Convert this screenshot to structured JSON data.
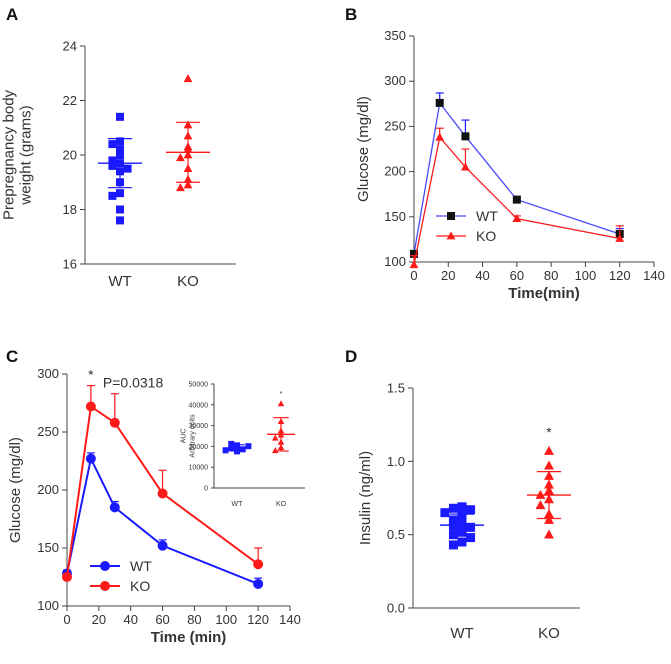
{
  "panels": {
    "A": {
      "letter": "A"
    },
    "B": {
      "letter": "B"
    },
    "C": {
      "letter": "C"
    },
    "D": {
      "letter": "D"
    }
  },
  "colors": {
    "wt": "#1a1aff",
    "ko": "#ff1a1a",
    "wt_line_b": "#4a4aff",
    "axis": "#444444"
  },
  "chart_data": [
    {
      "id": "A",
      "type": "scatter",
      "title": "",
      "xlabel": "",
      "ylabel": "Prepregnancy body weight (grams)",
      "ylabel_lines": [
        "Prepregnancy body",
        "weight (grams)"
      ],
      "categories": [
        "WT",
        "KO"
      ],
      "ylim": [
        16,
        24
      ],
      "yticks": [
        "16",
        "18",
        "20",
        "22",
        "24"
      ],
      "series": [
        {
          "name": "WT",
          "marker": "square",
          "values": [
            21.4,
            20.5,
            20.4,
            20.2,
            20.0,
            19.8,
            19.7,
            19.6,
            19.5,
            19.4,
            19.0,
            18.6,
            18.5,
            18.0,
            17.6
          ],
          "mean": 19.7,
          "sd_low": 18.8,
          "sd_high": 20.6
        },
        {
          "name": "KO",
          "marker": "triangle",
          "values": [
            22.8,
            21.1,
            20.7,
            20.3,
            20.2,
            20.0,
            19.9,
            19.5,
            19.1,
            18.9,
            18.8
          ],
          "mean": 20.1,
          "sd_low": 19.0,
          "sd_high": 21.2
        }
      ]
    },
    {
      "id": "B",
      "type": "line",
      "title": "",
      "xlabel": "Time(min)",
      "ylabel": "Glucose (mg/dl)",
      "x": [
        0,
        15,
        30,
        60,
        120
      ],
      "xlim": [
        0,
        140
      ],
      "ylim": [
        100,
        350
      ],
      "xticks": [
        "0",
        "20",
        "40",
        "60",
        "80",
        "100",
        "120",
        "140"
      ],
      "yticks": [
        "100",
        "150",
        "200",
        "250",
        "300",
        "350"
      ],
      "legend": [
        "WT",
        "KO"
      ],
      "series": [
        {
          "name": "WT",
          "marker": "square",
          "values": [
            109,
            276,
            239,
            169,
            131
          ],
          "err": [
            3,
            11,
            18,
            3,
            6
          ]
        },
        {
          "name": "KO",
          "marker": "triangle",
          "values": [
            97,
            238,
            205,
            148,
            126
          ],
          "err": [
            10,
            10,
            20,
            3,
            14
          ]
        }
      ]
    },
    {
      "id": "C",
      "type": "line",
      "title": "",
      "xlabel": "Time (min)",
      "ylabel": "Glucose (mg/dl)",
      "x": [
        0,
        15,
        30,
        60,
        120
      ],
      "xlim": [
        0,
        140
      ],
      "ylim": [
        100,
        300
      ],
      "xticks": [
        "0",
        "20",
        "40",
        "60",
        "80",
        "100",
        "120",
        "140"
      ],
      "yticks": [
        "100",
        "150",
        "200",
        "250",
        "300"
      ],
      "legend": [
        "WT",
        "KO"
      ],
      "annotation_star": "*",
      "annotation_p": "P=0.0318",
      "series": [
        {
          "name": "WT",
          "marker": "circle",
          "values": [
            128,
            227,
            185,
            152,
            119
          ],
          "err": [
            3,
            5,
            5,
            5,
            5
          ]
        },
        {
          "name": "KO",
          "marker": "circle",
          "values": [
            125,
            272,
            258,
            197,
            136
          ],
          "err": [
            3,
            18,
            25,
            20,
            14
          ]
        }
      ],
      "inset": {
        "type": "scatter",
        "ylabel_lines": [
          "AUC",
          "Arbitrary units"
        ],
        "categories": [
          "WT",
          "KO"
        ],
        "ylim": [
          0,
          50000
        ],
        "yticks": [
          "0",
          "10000",
          "20000",
          "30000",
          "40000",
          "50000"
        ],
        "annotation_star": "*",
        "series": [
          {
            "name": "WT",
            "marker": "square",
            "values": [
              20500,
              19800,
              19200,
              18600,
              18100,
              17600,
              21200,
              20100
            ],
            "mean": 19200,
            "sd_low": 17800,
            "sd_high": 20800
          },
          {
            "name": "KO",
            "marker": "triangle",
            "values": [
              40500,
              32000,
              27500,
              25500,
              22000,
              19500,
              18000,
              24000
            ],
            "mean": 25800,
            "sd_low": 17800,
            "sd_high": 33800
          }
        ]
      }
    },
    {
      "id": "D",
      "type": "scatter",
      "title": "",
      "xlabel": "",
      "ylabel": "Insulin (ng/ml)",
      "categories": [
        "WT",
        "KO"
      ],
      "ylim": [
        0.0,
        1.5
      ],
      "yticks": [
        "0.0",
        "0.5",
        "1.0",
        "1.5"
      ],
      "annotation_star": "*",
      "series": [
        {
          "name": "WT",
          "marker": "square",
          "values": [
            0.69,
            0.68,
            0.67,
            0.65,
            0.63,
            0.6,
            0.58,
            0.56,
            0.55,
            0.52,
            0.5,
            0.48,
            0.45,
            0.43
          ],
          "mean": 0.565,
          "sd_low": 0.49,
          "sd_high": 0.64
        },
        {
          "name": "KO",
          "marker": "triangle",
          "values": [
            1.07,
            0.97,
            0.9,
            0.84,
            0.8,
            0.77,
            0.74,
            0.7,
            0.64,
            0.6,
            0.5
          ],
          "mean": 0.77,
          "sd_low": 0.61,
          "sd_high": 0.93
        }
      ]
    }
  ]
}
